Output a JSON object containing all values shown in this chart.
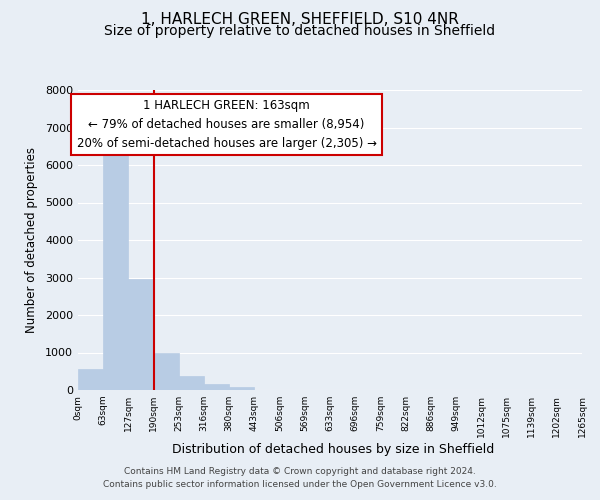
{
  "title": "1, HARLECH GREEN, SHEFFIELD, S10 4NR",
  "subtitle": "Size of property relative to detached houses in Sheffield",
  "xlabel": "Distribution of detached houses by size in Sheffield",
  "ylabel": "Number of detached properties",
  "bar_values": [
    560,
    6400,
    2950,
    980,
    380,
    170,
    80,
    0,
    0,
    0,
    0,
    0,
    0,
    0,
    0,
    0,
    0,
    0,
    0,
    0
  ],
  "bin_labels": [
    "0sqm",
    "63sqm",
    "127sqm",
    "190sqm",
    "253sqm",
    "316sqm",
    "380sqm",
    "443sqm",
    "506sqm",
    "569sqm",
    "633sqm",
    "696sqm",
    "759sqm",
    "822sqm",
    "886sqm",
    "949sqm",
    "1012sqm",
    "1075sqm",
    "1139sqm",
    "1202sqm",
    "1265sqm"
  ],
  "bar_color": "#b8cce4",
  "bar_edge_color": "#b8cce4",
  "vline_x": 2.5,
  "ylim": [
    0,
    8000
  ],
  "yticks": [
    0,
    1000,
    2000,
    3000,
    4000,
    5000,
    6000,
    7000,
    8000
  ],
  "annotation_title": "1 HARLECH GREEN: 163sqm",
  "annotation_line1": "← 79% of detached houses are smaller (8,954)",
  "annotation_line2": "20% of semi-detached houses are larger (2,305) →",
  "annotation_box_color": "#ffffff",
  "annotation_box_edge": "#cc0000",
  "vline_color": "#cc0000",
  "bg_color": "#e8eef5",
  "plot_bg_color": "#e8eef5",
  "footer_line1": "Contains HM Land Registry data © Crown copyright and database right 2024.",
  "footer_line2": "Contains public sector information licensed under the Open Government Licence v3.0.",
  "title_fontsize": 11,
  "subtitle_fontsize": 10,
  "annotation_body_fontsize": 8.5
}
